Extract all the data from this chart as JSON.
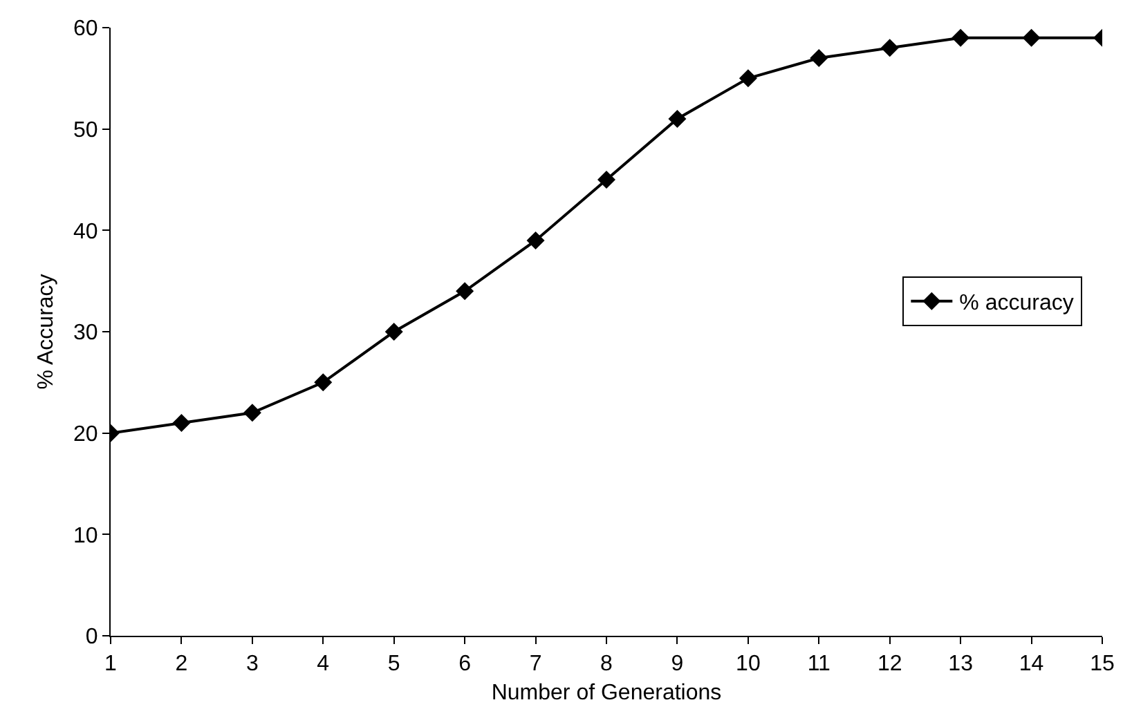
{
  "chart_data": {
    "type": "line",
    "xlabel": "Number of Generations",
    "ylabel": "% Accuracy",
    "x": [
      1,
      2,
      3,
      4,
      5,
      6,
      7,
      8,
      9,
      10,
      11,
      12,
      13,
      14,
      15
    ],
    "series": [
      {
        "name": "% accuracy",
        "color": "#000000",
        "values": [
          20,
          21,
          22,
          25,
          30,
          34,
          39,
          45,
          51,
          55,
          57,
          58,
          59,
          59,
          59
        ]
      }
    ],
    "xlim": [
      1,
      15
    ],
    "xticks": [
      1,
      2,
      3,
      4,
      5,
      6,
      7,
      8,
      9,
      10,
      11,
      12,
      13,
      14,
      15
    ],
    "ylim": [
      0,
      60
    ],
    "yticks": [
      0,
      10,
      20,
      30,
      40,
      50,
      60
    ],
    "grid": false,
    "legend": "right",
    "marker": "diamond",
    "line_style": "solid"
  }
}
